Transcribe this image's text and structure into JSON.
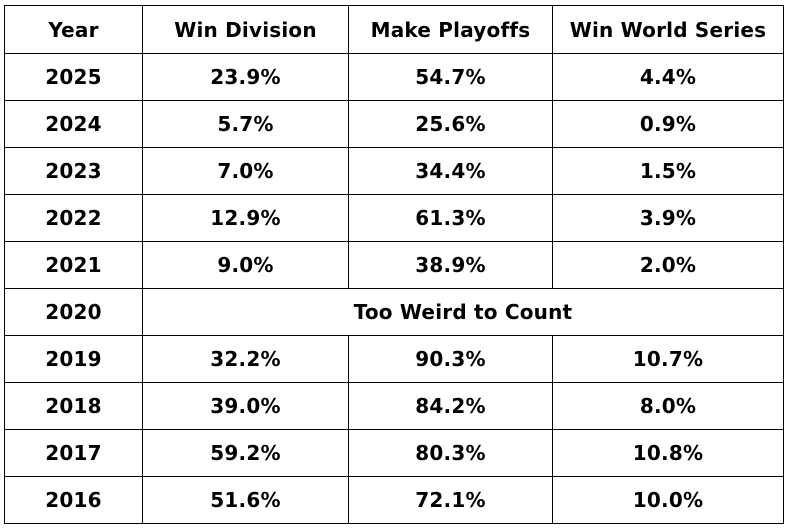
{
  "table": {
    "headers": [
      "Year",
      "Win Division",
      "Make Playoffs",
      "Win World Series"
    ],
    "rows": [
      {
        "year": "2025",
        "win_division": "23.9%",
        "make_playoffs": "54.7%",
        "win_world_series": "4.4%"
      },
      {
        "year": "2024",
        "win_division": "5.7%",
        "make_playoffs": "25.6%",
        "win_world_series": "0.9%"
      },
      {
        "year": "2023",
        "win_division": "7.0%",
        "make_playoffs": "34.4%",
        "win_world_series": "1.5%"
      },
      {
        "year": "2022",
        "win_division": "12.9%",
        "make_playoffs": "61.3%",
        "win_world_series": "3.9%"
      },
      {
        "year": "2021",
        "win_division": "9.0%",
        "make_playoffs": "38.9%",
        "win_world_series": "2.0%"
      },
      {
        "year": "2020",
        "note": "Too Weird to Count"
      },
      {
        "year": "2019",
        "win_division": "32.2%",
        "make_playoffs": "90.3%",
        "win_world_series": "10.7%"
      },
      {
        "year": "2018",
        "win_division": "39.0%",
        "make_playoffs": "84.2%",
        "win_world_series": "8.0%"
      },
      {
        "year": "2017",
        "win_division": "59.2%",
        "make_playoffs": "80.3%",
        "win_world_series": "10.8%"
      },
      {
        "year": "2016",
        "win_division": "51.6%",
        "make_playoffs": "72.1%",
        "win_world_series": "10.0%"
      }
    ]
  }
}
